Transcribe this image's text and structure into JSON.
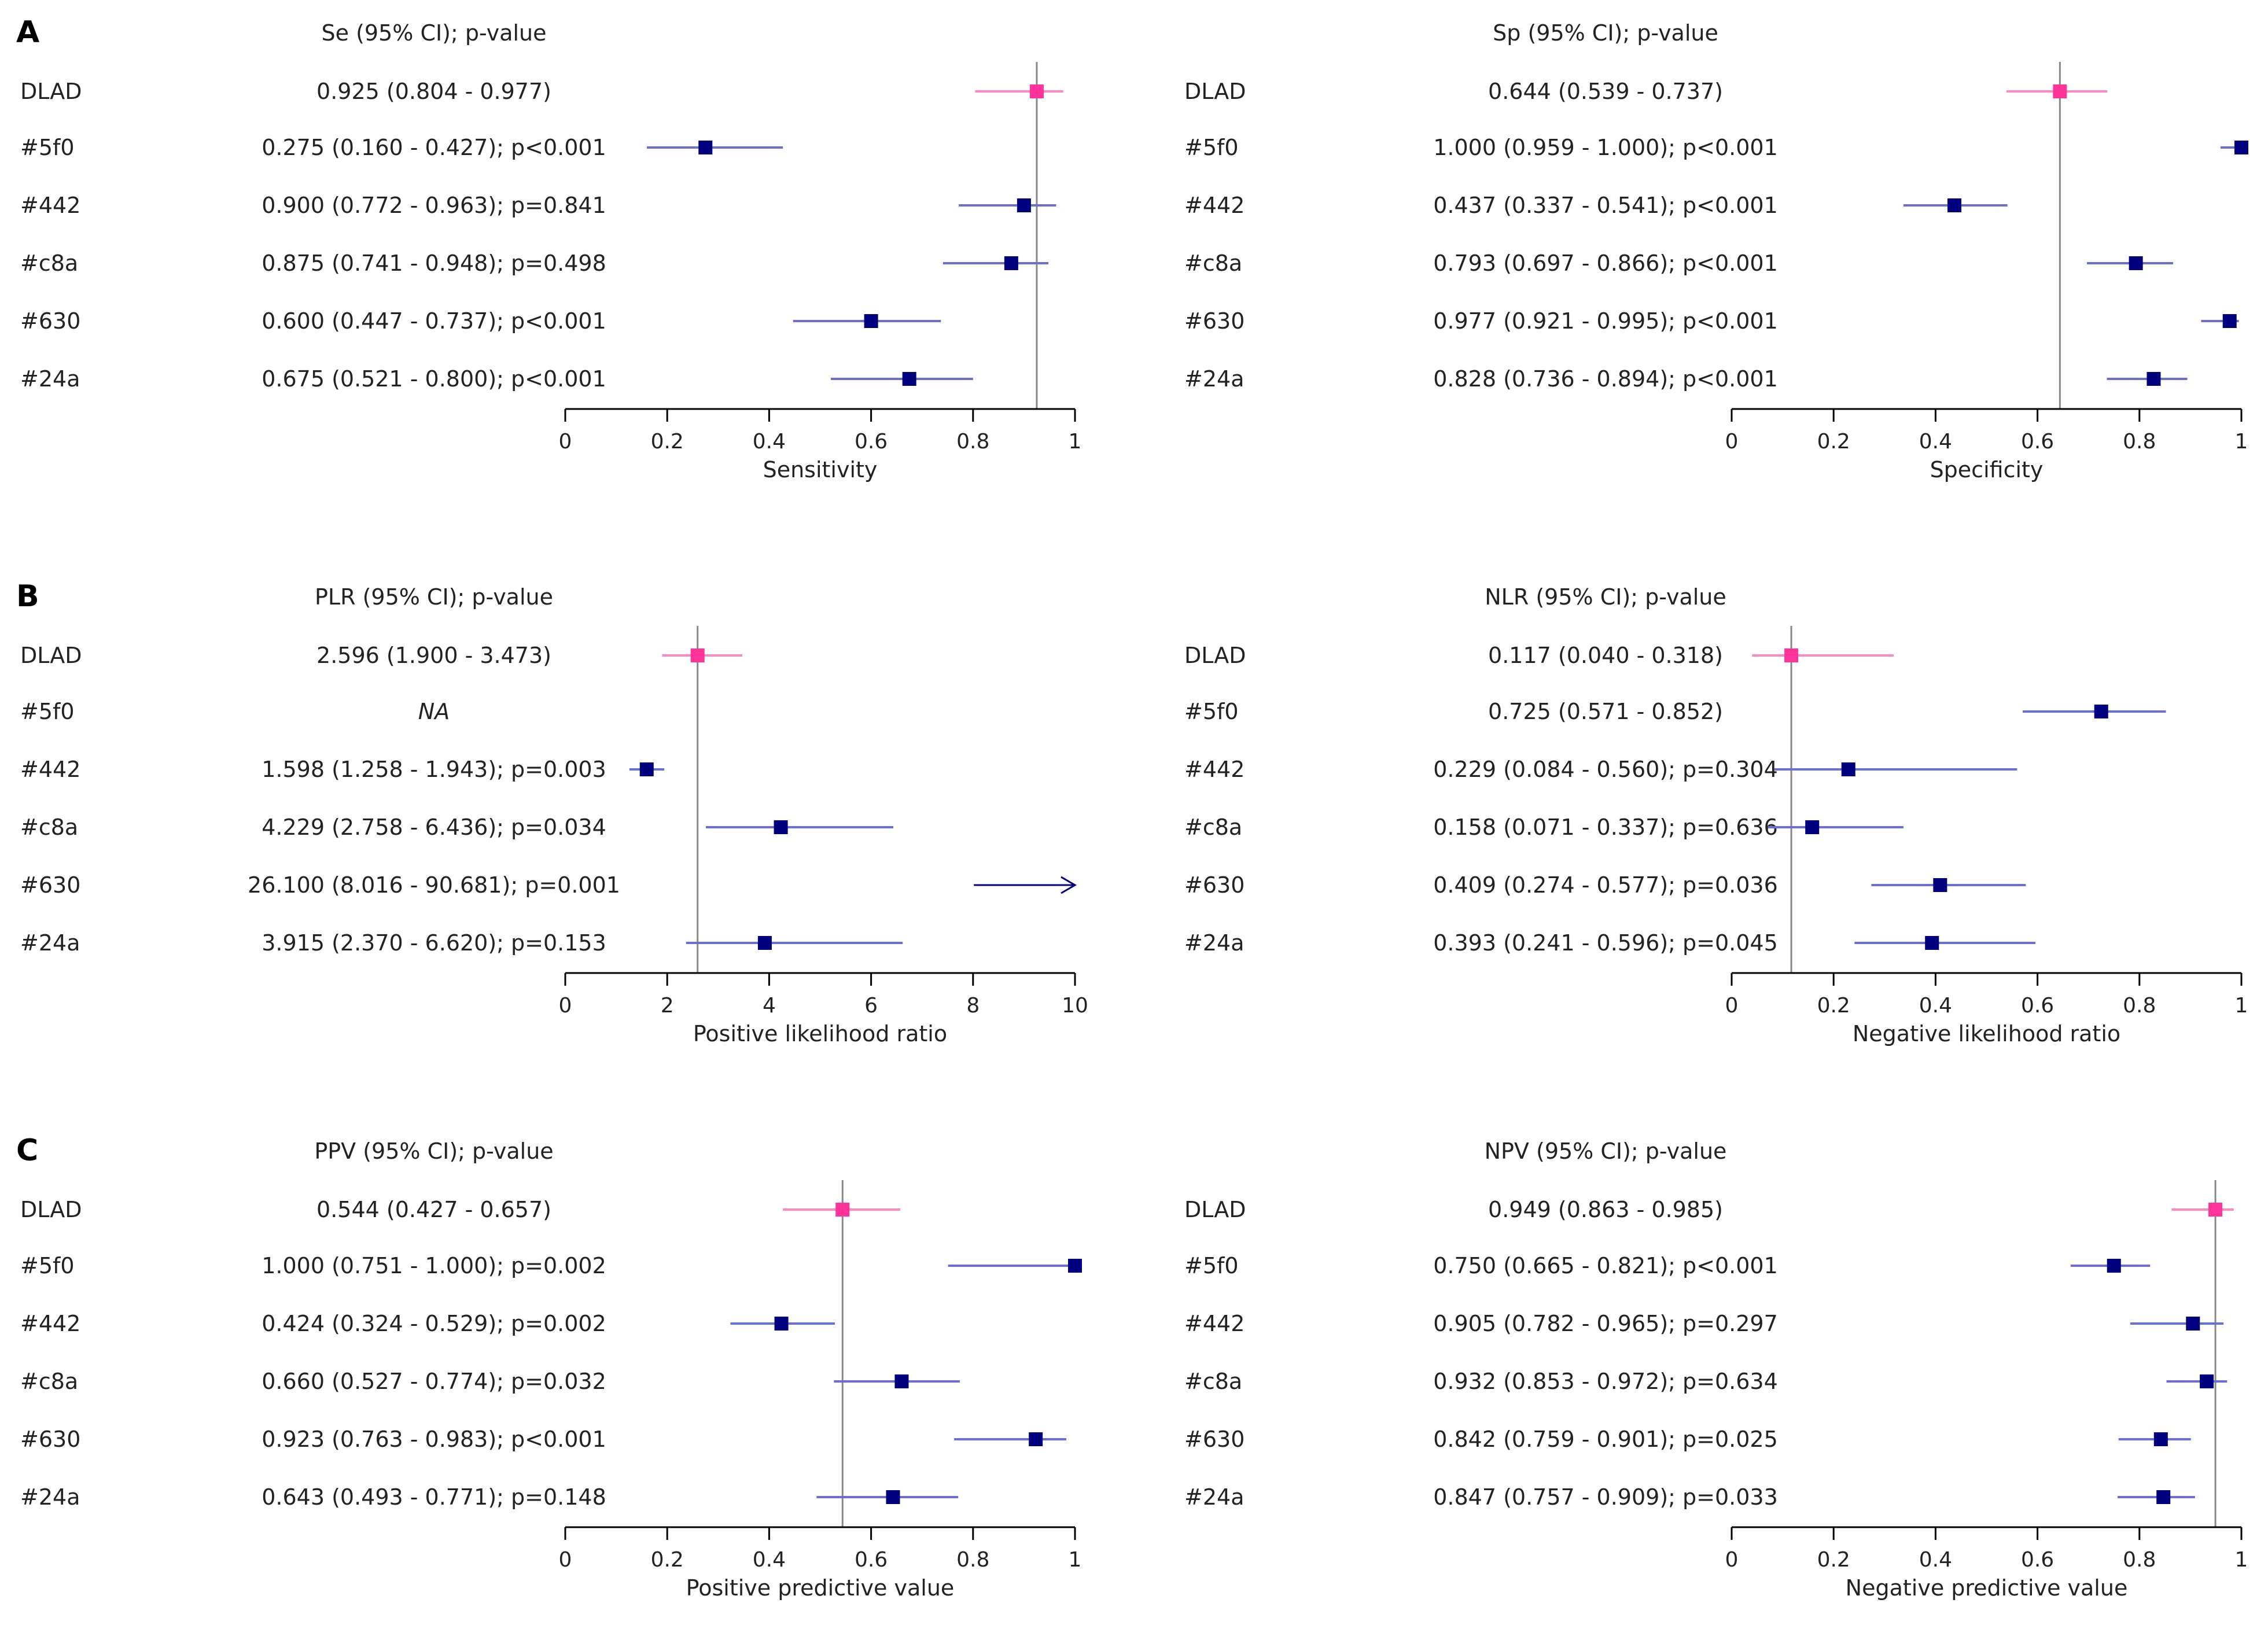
{
  "chart_data": [
    {
      "type": "forest",
      "section": "A",
      "header": "Se (95% CI); p-value",
      "xlabel": "Sensitivity",
      "xlim": [
        0,
        1
      ],
      "ticks": [
        0,
        0.2,
        0.4,
        0.6,
        0.8,
        1
      ],
      "tick_labels": [
        "0",
        "0.2",
        "0.4",
        "0.6",
        "0.8",
        "1"
      ],
      "ref": 0.925,
      "rows": [
        {
          "label": "DLAD",
          "text": "0.925 (0.804 - 0.977)",
          "est": 0.925,
          "lo": 0.804,
          "hi": 0.977,
          "ref": true
        },
        {
          "label": "#5f0",
          "text": "0.275 (0.160 - 0.427); p<0.001",
          "est": 0.275,
          "lo": 0.16,
          "hi": 0.427
        },
        {
          "label": "#442",
          "text": "0.900 (0.772 - 0.963); p=0.841",
          "est": 0.9,
          "lo": 0.772,
          "hi": 0.963
        },
        {
          "label": "#c8a",
          "text": "0.875 (0.741 - 0.948); p=0.498",
          "est": 0.875,
          "lo": 0.741,
          "hi": 0.948
        },
        {
          "label": "#630",
          "text": "0.600 (0.447 - 0.737); p<0.001",
          "est": 0.6,
          "lo": 0.447,
          "hi": 0.737
        },
        {
          "label": "#24a",
          "text": "0.675 (0.521 - 0.800); p<0.001",
          "est": 0.675,
          "lo": 0.521,
          "hi": 0.8
        }
      ]
    },
    {
      "type": "forest",
      "section": "",
      "header": "Sp (95% CI); p-value",
      "xlabel": "Specificity",
      "xlim": [
        0,
        1
      ],
      "ticks": [
        0,
        0.2,
        0.4,
        0.6,
        0.8,
        1
      ],
      "tick_labels": [
        "0",
        "0.2",
        "0.4",
        "0.6",
        "0.8",
        "1"
      ],
      "ref": 0.644,
      "rows": [
        {
          "label": "DLAD",
          "text": "0.644 (0.539 - 0.737)",
          "est": 0.644,
          "lo": 0.539,
          "hi": 0.737,
          "ref": true
        },
        {
          "label": "#5f0",
          "text": "1.000 (0.959 - 1.000); p<0.001",
          "est": 1.0,
          "lo": 0.959,
          "hi": 1.0
        },
        {
          "label": "#442",
          "text": "0.437 (0.337 - 0.541); p<0.001",
          "est": 0.437,
          "lo": 0.337,
          "hi": 0.541
        },
        {
          "label": "#c8a",
          "text": "0.793 (0.697 - 0.866); p<0.001",
          "est": 0.793,
          "lo": 0.697,
          "hi": 0.866
        },
        {
          "label": "#630",
          "text": "0.977 (0.921 - 0.995); p<0.001",
          "est": 0.977,
          "lo": 0.921,
          "hi": 0.995
        },
        {
          "label": "#24a",
          "text": "0.828 (0.736 - 0.894); p<0.001",
          "est": 0.828,
          "lo": 0.736,
          "hi": 0.894
        }
      ]
    },
    {
      "type": "forest",
      "section": "B",
      "header": "PLR (95% CI); p-value",
      "xlabel": "Positive likelihood ratio",
      "xlim": [
        0,
        10
      ],
      "ticks": [
        0,
        2,
        4,
        6,
        8,
        10
      ],
      "tick_labels": [
        "0",
        "2",
        "4",
        "6",
        "8",
        "10"
      ],
      "ref": 2.596,
      "rows": [
        {
          "label": "DLAD",
          "text": "2.596 (1.900 - 3.473)",
          "est": 2.596,
          "lo": 1.9,
          "hi": 3.473,
          "ref": true
        },
        {
          "label": "#5f0",
          "text": "NA",
          "est": null,
          "lo": null,
          "hi": null,
          "na": true
        },
        {
          "label": "#442",
          "text": "1.598 (1.258 - 1.943); p=0.003",
          "est": 1.598,
          "lo": 1.258,
          "hi": 1.943
        },
        {
          "label": "#c8a",
          "text": "4.229 (2.758 - 6.436); p=0.034",
          "est": 4.229,
          "lo": 2.758,
          "hi": 6.436
        },
        {
          "label": "#630",
          "text": "26.100 (8.016 - 90.681); p=0.001",
          "est": 26.1,
          "lo": 8.016,
          "hi": 90.681
        },
        {
          "label": "#24a",
          "text": "3.915 (2.370 - 6.620); p=0.153",
          "est": 3.915,
          "lo": 2.37,
          "hi": 6.62
        }
      ]
    },
    {
      "type": "forest",
      "section": "",
      "header": "NLR (95% CI); p-value",
      "xlabel": "Negative likelihood ratio",
      "xlim": [
        0,
        1
      ],
      "ticks": [
        0,
        0.2,
        0.4,
        0.6,
        0.8,
        1
      ],
      "tick_labels": [
        "0",
        "0.2",
        "0.4",
        "0.6",
        "0.8",
        "1"
      ],
      "ref": 0.117,
      "rows": [
        {
          "label": "DLAD",
          "text": "0.117 (0.040 - 0.318)",
          "est": 0.117,
          "lo": 0.04,
          "hi": 0.318,
          "ref": true
        },
        {
          "label": "#5f0",
          "text": "0.725 (0.571 - 0.852)",
          "est": 0.725,
          "lo": 0.571,
          "hi": 0.852
        },
        {
          "label": "#442",
          "text": "0.229 (0.084 - 0.560); p=0.304",
          "est": 0.229,
          "lo": 0.084,
          "hi": 0.56
        },
        {
          "label": "#c8a",
          "text": "0.158 (0.071 - 0.337); p=0.636",
          "est": 0.158,
          "lo": 0.071,
          "hi": 0.337
        },
        {
          "label": "#630",
          "text": "0.409 (0.274 - 0.577); p=0.036",
          "est": 0.409,
          "lo": 0.274,
          "hi": 0.577
        },
        {
          "label": "#24a",
          "text": "0.393 (0.241 - 0.596); p=0.045",
          "est": 0.393,
          "lo": 0.241,
          "hi": 0.596
        }
      ]
    },
    {
      "type": "forest",
      "section": "C",
      "header": "PPV (95% CI); p-value",
      "xlabel": "Positive predictive value",
      "xlim": [
        0,
        1
      ],
      "ticks": [
        0,
        0.2,
        0.4,
        0.6,
        0.8,
        1
      ],
      "tick_labels": [
        "0",
        "0.2",
        "0.4",
        "0.6",
        "0.8",
        "1"
      ],
      "ref": 0.544,
      "rows": [
        {
          "label": "DLAD",
          "text": "0.544 (0.427 - 0.657)",
          "est": 0.544,
          "lo": 0.427,
          "hi": 0.657,
          "ref": true
        },
        {
          "label": "#5f0",
          "text": "1.000 (0.751 - 1.000); p=0.002",
          "est": 1.0,
          "lo": 0.751,
          "hi": 1.0
        },
        {
          "label": "#442",
          "text": "0.424 (0.324 - 0.529); p=0.002",
          "est": 0.424,
          "lo": 0.324,
          "hi": 0.529
        },
        {
          "label": "#c8a",
          "text": "0.660 (0.527 - 0.774); p=0.032",
          "est": 0.66,
          "lo": 0.527,
          "hi": 0.774
        },
        {
          "label": "#630",
          "text": "0.923 (0.763 - 0.983); p<0.001",
          "est": 0.923,
          "lo": 0.763,
          "hi": 0.983
        },
        {
          "label": "#24a",
          "text": "0.643 (0.493 - 0.771); p=0.148",
          "est": 0.643,
          "lo": 0.493,
          "hi": 0.771
        }
      ]
    },
    {
      "type": "forest",
      "section": "",
      "header": "NPV (95% CI); p-value",
      "xlabel": "Negative predictive value",
      "xlim": [
        0,
        1
      ],
      "ticks": [
        0,
        0.2,
        0.4,
        0.6,
        0.8,
        1
      ],
      "tick_labels": [
        "0",
        "0.2",
        "0.4",
        "0.6",
        "0.8",
        "1"
      ],
      "ref": 0.949,
      "rows": [
        {
          "label": "DLAD",
          "text": "0.949 (0.863 - 0.985)",
          "est": 0.949,
          "lo": 0.863,
          "hi": 0.985,
          "ref": true
        },
        {
          "label": "#5f0",
          "text": "0.750 (0.665 - 0.821); p<0.001",
          "est": 0.75,
          "lo": 0.665,
          "hi": 0.821
        },
        {
          "label": "#442",
          "text": "0.905 (0.782 - 0.965); p=0.297",
          "est": 0.905,
          "lo": 0.782,
          "hi": 0.965
        },
        {
          "label": "#c8a",
          "text": "0.932 (0.853 - 0.972); p=0.634",
          "est": 0.932,
          "lo": 0.853,
          "hi": 0.972
        },
        {
          "label": "#630",
          "text": "0.842 (0.759 - 0.901); p=0.025",
          "est": 0.842,
          "lo": 0.759,
          "hi": 0.901
        },
        {
          "label": "#24a",
          "text": "0.847 (0.757 - 0.909); p=0.033",
          "est": 0.847,
          "lo": 0.757,
          "hi": 0.909
        }
      ]
    }
  ],
  "colors": {
    "reference": "#ff3399",
    "reference_ci": "#ff88c4",
    "model": "#00007f",
    "model_ci": "#6b6fd1",
    "ref_line": "#888888",
    "axis": "#000000"
  }
}
